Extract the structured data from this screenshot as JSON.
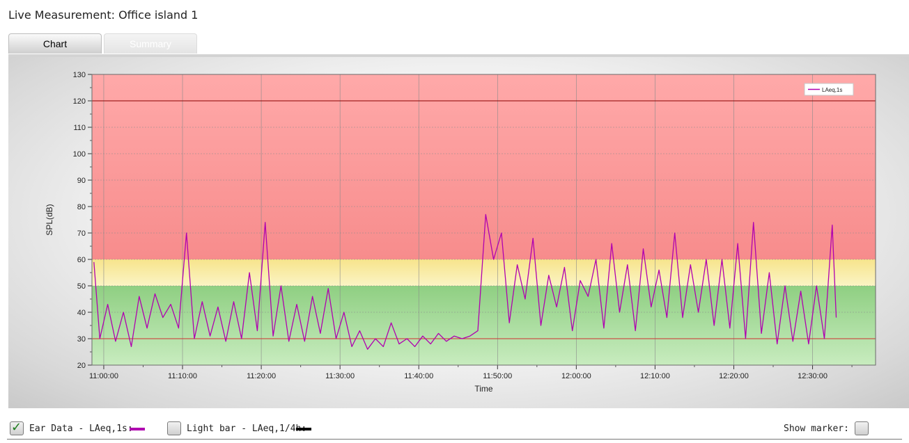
{
  "window": {
    "title": "Live Measurement: Office island 1"
  },
  "tabs": [
    {
      "label": "Chart",
      "active": true
    },
    {
      "label": "Summary",
      "active": false
    }
  ],
  "colors": {
    "series_line": "#b000b0",
    "zone_red": "#f99a9a",
    "zone_yellow": "#f8efa8",
    "zone_green": "#a6d89a",
    "threshold_line_high": "#8b0000",
    "threshold_line_low": "#d03030",
    "light_bar_swatch": "#000000"
  },
  "footer": {
    "ear_data_label": "Ear Data - LAeq,1s:",
    "ear_data_checked": true,
    "light_bar_label": "Light bar - LAeq,1/4h:",
    "light_bar_checked": false,
    "show_marker_label": "Show marker:",
    "show_marker_checked": false
  },
  "chart_data": {
    "type": "line",
    "xlabel": "Time",
    "ylabel": "SPL(dB)",
    "ylim": [
      20,
      130
    ],
    "yticks": [
      20,
      30,
      40,
      50,
      60,
      70,
      80,
      90,
      100,
      110,
      120,
      130
    ],
    "xlim": [
      "10:58:30",
      "12:38:00"
    ],
    "xticks": [
      "11:00:00",
      "11:10:00",
      "11:20:00",
      "11:30:00",
      "11:40:00",
      "11:50:00",
      "12:00:00",
      "12:10:00",
      "12:20:00",
      "12:30:00"
    ],
    "grid": true,
    "legend_position": "top-right",
    "zones": [
      {
        "from": 20,
        "to": 50,
        "color": "green"
      },
      {
        "from": 50,
        "to": 60,
        "color": "yellow"
      },
      {
        "from": 60,
        "to": 130,
        "color": "red"
      }
    ],
    "reference_lines": [
      120,
      30
    ],
    "series": [
      {
        "name": "LAeq,1s",
        "x": [
          "10:58:45",
          "10:59:30",
          "11:00:30",
          "11:01:30",
          "11:02:30",
          "11:03:30",
          "11:04:30",
          "11:05:30",
          "11:06:30",
          "11:07:30",
          "11:08:30",
          "11:09:30",
          "11:10:30",
          "11:11:30",
          "11:12:30",
          "11:13:30",
          "11:14:30",
          "11:15:30",
          "11:16:30",
          "11:17:30",
          "11:18:30",
          "11:19:30",
          "11:20:30",
          "11:21:30",
          "11:22:30",
          "11:23:30",
          "11:24:30",
          "11:25:30",
          "11:26:30",
          "11:27:30",
          "11:28:30",
          "11:29:30",
          "11:30:30",
          "11:31:30",
          "11:32:30",
          "11:33:30",
          "11:34:30",
          "11:35:30",
          "11:36:30",
          "11:37:30",
          "11:38:30",
          "11:39:30",
          "11:40:30",
          "11:41:30",
          "11:42:30",
          "11:43:30",
          "11:44:30",
          "11:45:30",
          "11:46:30",
          "11:47:30",
          "11:48:30",
          "11:49:30",
          "11:50:30",
          "11:51:30",
          "11:52:30",
          "11:53:30",
          "11:54:30",
          "11:55:30",
          "11:56:30",
          "11:57:30",
          "11:58:30",
          "11:59:30",
          "12:00:30",
          "12:01:30",
          "12:02:30",
          "12:03:30",
          "12:04:30",
          "12:05:30",
          "12:06:30",
          "12:07:30",
          "12:08:30",
          "12:09:30",
          "12:10:30",
          "12:11:30",
          "12:12:30",
          "12:13:30",
          "12:14:30",
          "12:15:30",
          "12:16:30",
          "12:17:30",
          "12:18:30",
          "12:19:30",
          "12:20:30",
          "12:21:30",
          "12:22:30",
          "12:23:30",
          "12:24:30",
          "12:25:30",
          "12:26:30",
          "12:27:30",
          "12:28:30",
          "12:29:30",
          "12:30:30",
          "12:31:30",
          "12:32:30",
          "12:33:00"
        ],
        "y": [
          59,
          30,
          43,
          29,
          40,
          27,
          46,
          34,
          47,
          38,
          43,
          34,
          70,
          30,
          44,
          31,
          42,
          29,
          44,
          30,
          55,
          33,
          74,
          31,
          50,
          29,
          43,
          29,
          46,
          32,
          49,
          30,
          40,
          27,
          33,
          26,
          30,
          27,
          36,
          28,
          30,
          27,
          31,
          28,
          32,
          29,
          31,
          30,
          31,
          33,
          77,
          60,
          70,
          36,
          58,
          45,
          68,
          35,
          54,
          42,
          57,
          33,
          52,
          46,
          60,
          34,
          66,
          40,
          58,
          33,
          64,
          42,
          56,
          38,
          70,
          38,
          58,
          40,
          60,
          35,
          60,
          34,
          66,
          30,
          74,
          32,
          55,
          28,
          50,
          29,
          48,
          28,
          50,
          30,
          73,
          38
        ]
      }
    ]
  }
}
